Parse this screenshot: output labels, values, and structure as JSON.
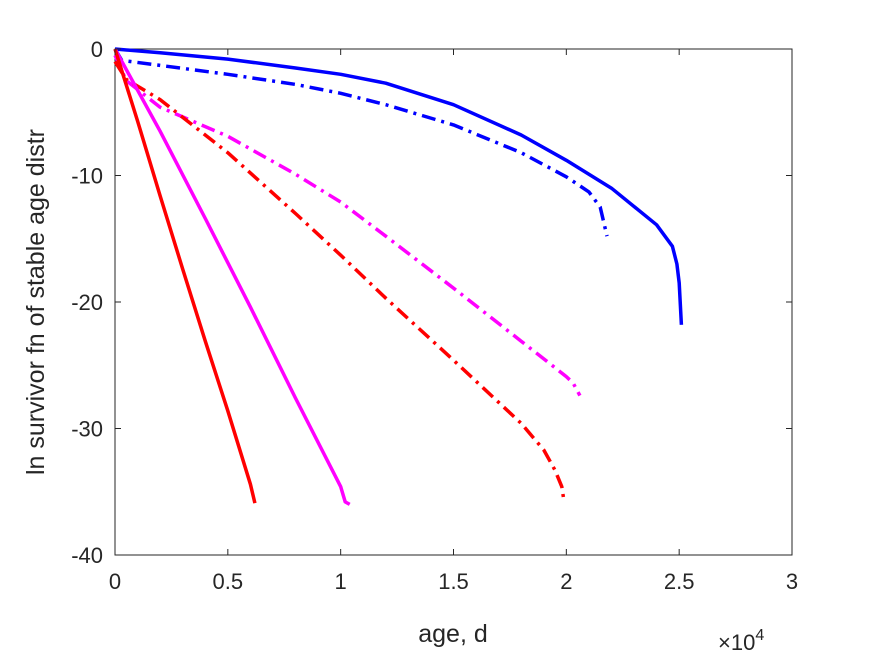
{
  "chart_data": {
    "type": "line",
    "title": "",
    "xlabel": "age, d",
    "ylabel": "ln survivor fn of stable age distr",
    "x_multiplier_label": "×10",
    "x_multiplier_exponent": "4",
    "xlim": [
      0,
      3
    ],
    "ylim": [
      -40,
      0
    ],
    "xticks": [
      0,
      0.5,
      1,
      1.5,
      2,
      2.5,
      3
    ],
    "xtick_labels": [
      "0",
      "0.5",
      "1",
      "1.5",
      "2",
      "2.5",
      "3"
    ],
    "yticks": [
      0,
      -10,
      -20,
      -30,
      -40
    ],
    "ytick_labels": [
      "0",
      "-10",
      "-20",
      "-30",
      "-40"
    ],
    "grid": false,
    "legend": "none",
    "series": [
      {
        "color": "#0000ff",
        "style": "solid",
        "x": [
          0,
          0.2,
          0.5,
          0.8,
          1.0,
          1.2,
          1.5,
          1.8,
          2.0,
          2.2,
          2.4,
          2.47,
          2.49,
          2.5,
          2.51
        ],
        "y": [
          0,
          -0.3,
          -0.8,
          -1.5,
          -2.0,
          -2.7,
          -4.4,
          -6.8,
          -8.8,
          -11.0,
          -13.9,
          -15.6,
          -17.0,
          -18.5,
          -21.8
        ]
      },
      {
        "color": "#0000ff",
        "style": "dashdot",
        "x": [
          0,
          0.03,
          0.2,
          0.5,
          0.8,
          1.0,
          1.2,
          1.5,
          1.8,
          2.0,
          2.1,
          2.15,
          2.18
        ],
        "y": [
          0,
          -0.9,
          -1.3,
          -2.0,
          -2.8,
          -3.5,
          -4.4,
          -6.0,
          -8.2,
          -10.1,
          -11.3,
          -12.5,
          -14.8
        ]
      },
      {
        "color": "#ff00ff",
        "style": "dashdot",
        "x": [
          0,
          0.05,
          0.2,
          0.5,
          0.8,
          1.0,
          1.2,
          1.5,
          1.8,
          1.9,
          2.0,
          2.03,
          2.06
        ],
        "y": [
          -0.5,
          -2.5,
          -4.6,
          -6.9,
          -9.9,
          -12.1,
          -14.8,
          -18.9,
          -23.1,
          -24.5,
          -25.9,
          -26.4,
          -27.4
        ]
      },
      {
        "color": "#ff0000",
        "style": "dashdot",
        "x": [
          0,
          0.05,
          0.2,
          0.5,
          0.8,
          1.0,
          1.2,
          1.5,
          1.8,
          1.9,
          1.95,
          1.98,
          1.99
        ],
        "y": [
          -1.0,
          -2.4,
          -4.0,
          -8.2,
          -13.0,
          -16.3,
          -19.7,
          -24.6,
          -29.6,
          -31.7,
          -33.3,
          -34.6,
          -35.8
        ]
      },
      {
        "color": "#ff00ff",
        "style": "solid",
        "x": [
          0,
          0.2,
          0.4,
          0.6,
          0.8,
          1.0,
          1.02,
          1.04
        ],
        "y": [
          0,
          -6.5,
          -13.4,
          -20.4,
          -27.6,
          -34.6,
          -35.8,
          -36.0
        ]
      },
      {
        "color": "#ff0000",
        "style": "solid",
        "x": [
          0,
          0.1,
          0.2,
          0.3,
          0.4,
          0.5,
          0.6,
          0.62
        ],
        "y": [
          0,
          -5.7,
          -11.6,
          -17.4,
          -23.1,
          -28.6,
          -34.4,
          -35.9
        ]
      }
    ]
  }
}
